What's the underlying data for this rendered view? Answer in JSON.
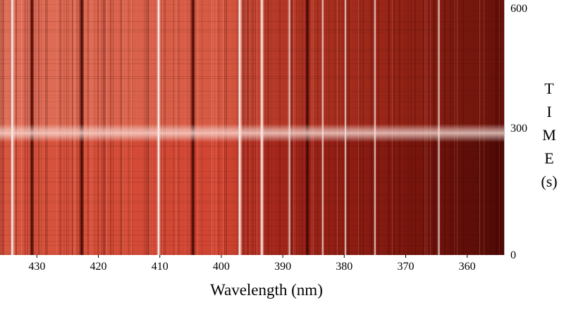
{
  "chart_data": {
    "type": "heatmap",
    "title": "",
    "xlabel": "Wavelength (nm)",
    "ylabel": [
      "T",
      "I",
      "M",
      "E",
      "(s)"
    ],
    "xlim": [
      436,
      354
    ],
    "ylim": [
      0,
      600
    ],
    "x_ticks": [
      430,
      420,
      410,
      400,
      390,
      380,
      370,
      360
    ],
    "y_ticks": [
      0,
      300,
      600
    ],
    "grid": false,
    "colors": {
      "bright": "#d8503a",
      "mid": "#b8301f",
      "dark": "#5e0d07",
      "emission": "#f4f0ee",
      "flash": "#f0d4cc"
    },
    "bright_lines_nm": [
      434.0,
      410.2,
      397.0,
      393.4,
      388.9,
      383.5,
      379.8,
      375.0,
      364.6
    ],
    "dark_lines_nm": [
      422.7,
      430.8,
      404.6,
      386.0
    ],
    "flash_time_s": 287
  }
}
